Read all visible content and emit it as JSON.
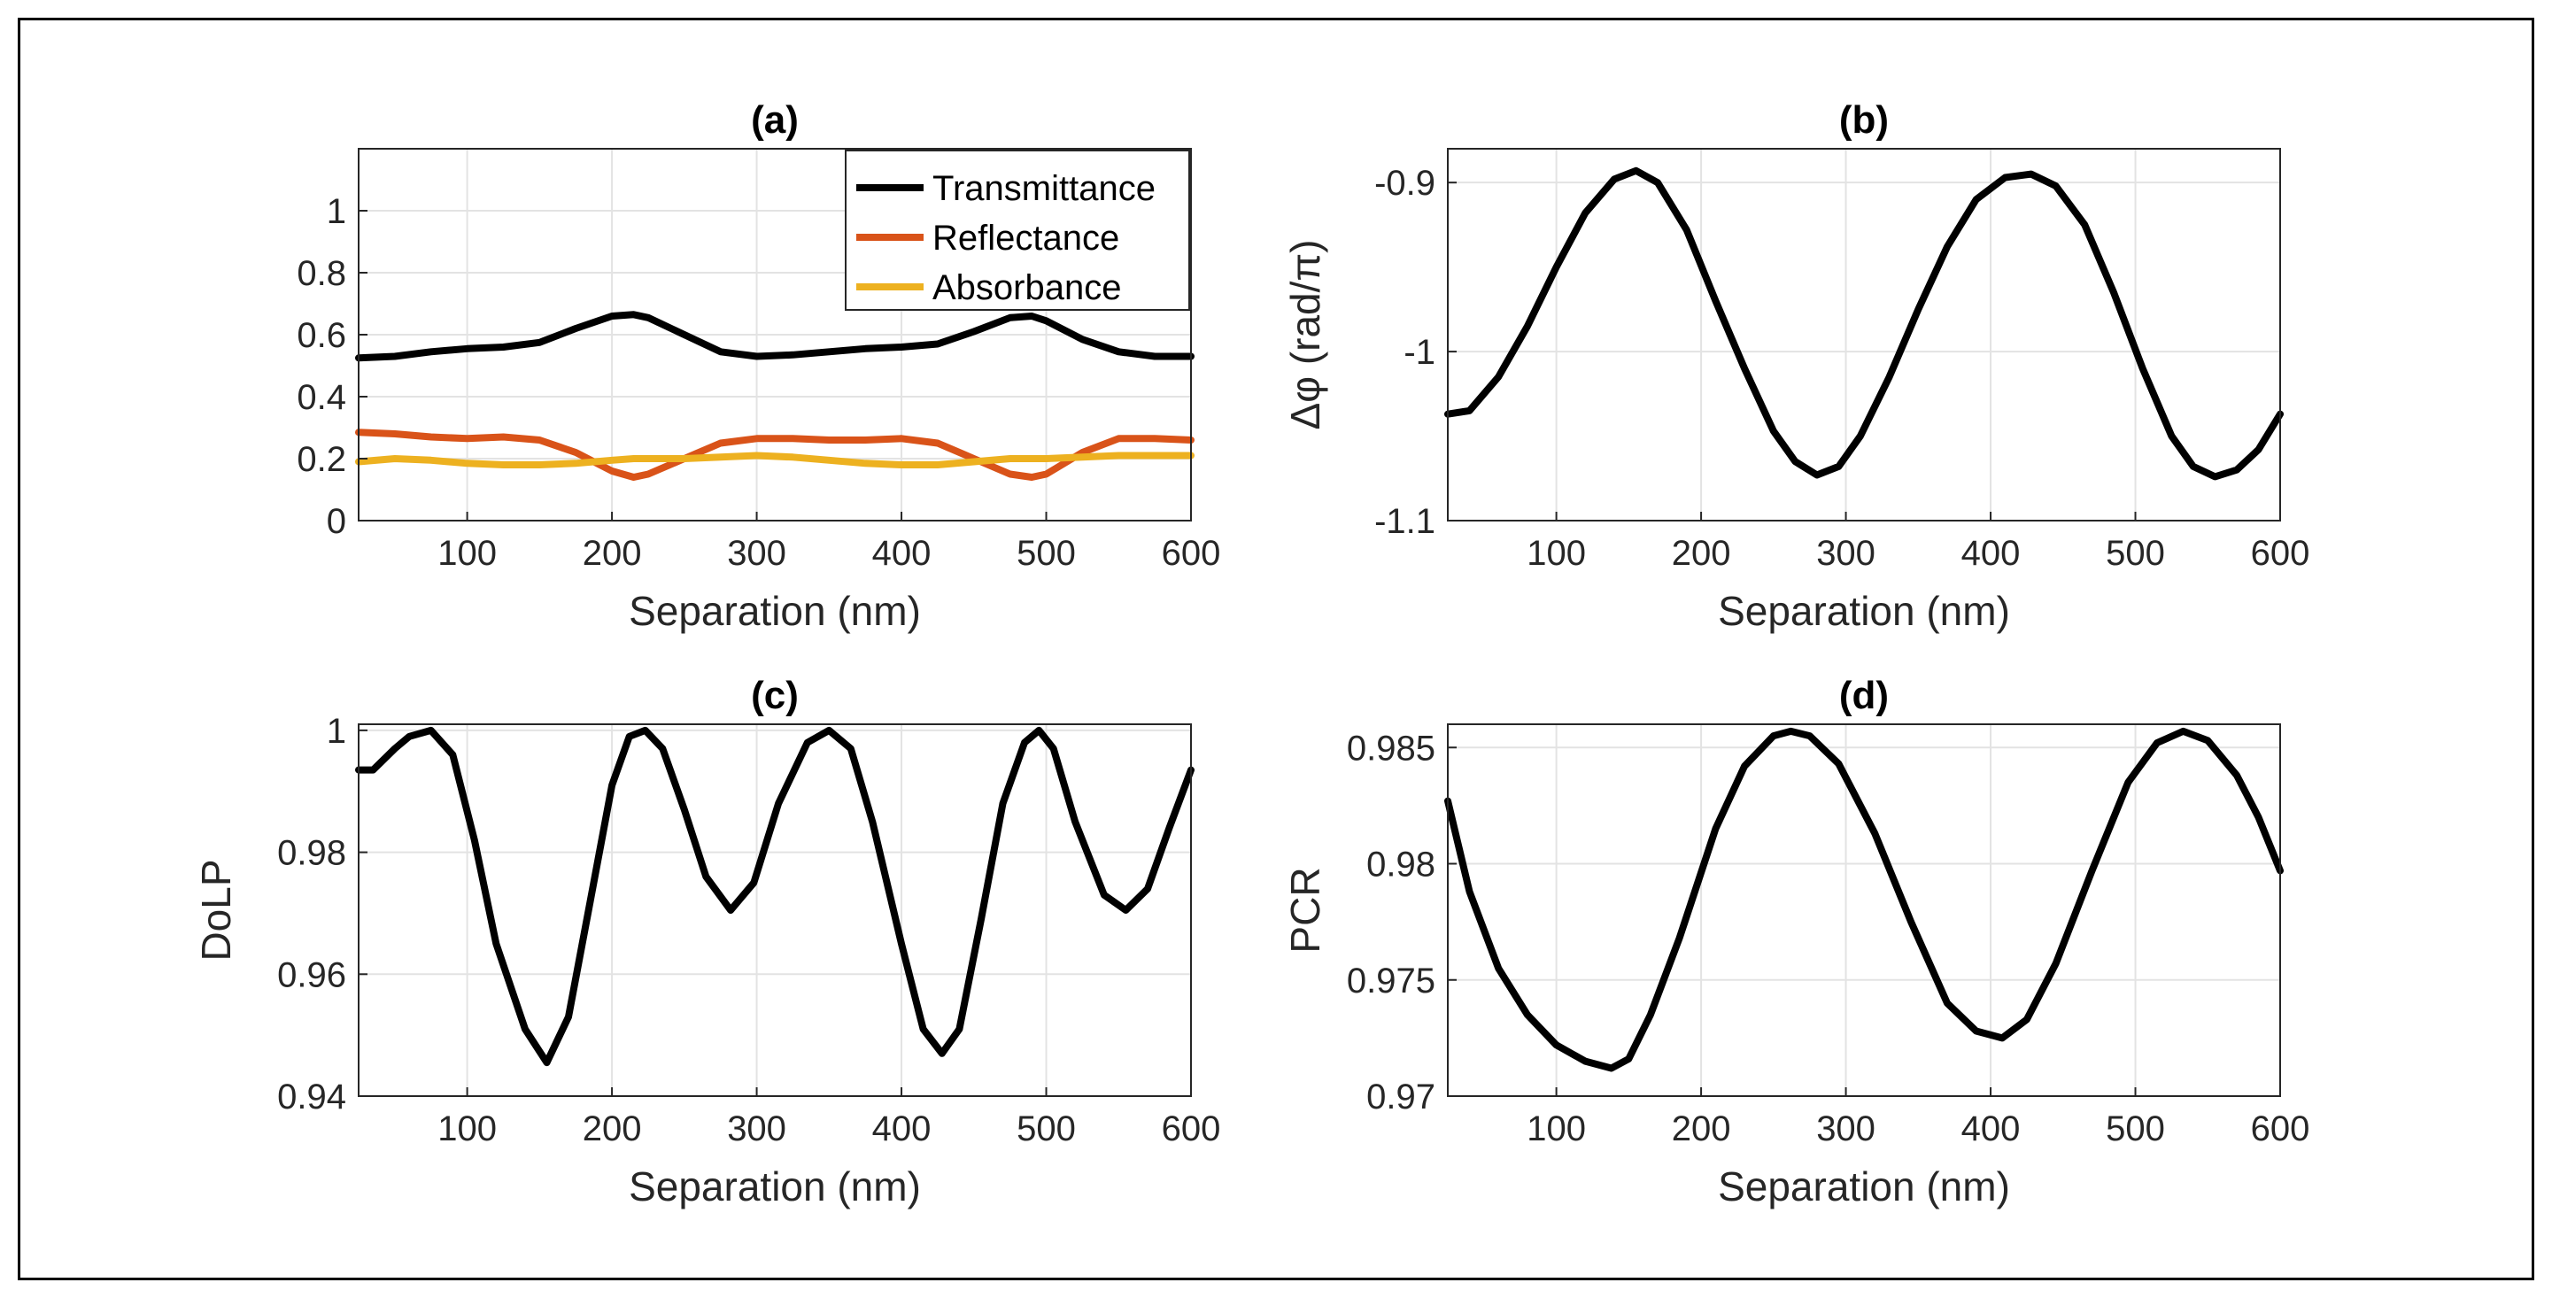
{
  "chart_data": [
    {
      "id": "a",
      "type": "line",
      "title": "(a)",
      "xlabel": "Separation (nm)",
      "ylabel": "",
      "xlim": [
        25,
        600
      ],
      "ylim": [
        0,
        1.2
      ],
      "xticks": [
        100,
        200,
        300,
        400,
        500,
        600
      ],
      "xtick_labels": [
        "100",
        "200",
        "300",
        "400",
        "500",
        "600"
      ],
      "yticks": [
        0,
        0.2,
        0.4,
        0.6,
        0.8,
        1
      ],
      "ytick_labels": [
        "0",
        "0.2",
        "0.4",
        "0.6",
        "0.8",
        "1"
      ],
      "grid": true,
      "legend": "top-right",
      "x": [
        25,
        50,
        75,
        100,
        125,
        150,
        175,
        200,
        215,
        225,
        250,
        275,
        300,
        325,
        350,
        375,
        400,
        425,
        450,
        475,
        490,
        500,
        525,
        550,
        575,
        600
      ],
      "series": [
        {
          "name": "Transmittance",
          "color": "#000000",
          "values": [
            0.525,
            0.53,
            0.545,
            0.555,
            0.56,
            0.575,
            0.62,
            0.66,
            0.665,
            0.655,
            0.6,
            0.545,
            0.53,
            0.535,
            0.545,
            0.555,
            0.56,
            0.57,
            0.61,
            0.655,
            0.66,
            0.645,
            0.585,
            0.545,
            0.53,
            0.53
          ]
        },
        {
          "name": "Reflectance",
          "color": "#D95319",
          "values": [
            0.285,
            0.28,
            0.27,
            0.265,
            0.27,
            0.26,
            0.22,
            0.16,
            0.14,
            0.15,
            0.2,
            0.25,
            0.265,
            0.265,
            0.26,
            0.26,
            0.265,
            0.25,
            0.2,
            0.15,
            0.14,
            0.15,
            0.22,
            0.265,
            0.265,
            0.26
          ]
        },
        {
          "name": "Absorbance",
          "color": "#EDB120",
          "values": [
            0.19,
            0.2,
            0.195,
            0.185,
            0.18,
            0.18,
            0.185,
            0.195,
            0.2,
            0.2,
            0.2,
            0.205,
            0.21,
            0.205,
            0.195,
            0.185,
            0.18,
            0.18,
            0.19,
            0.2,
            0.2,
            0.2,
            0.205,
            0.21,
            0.21,
            0.21
          ]
        }
      ]
    },
    {
      "id": "b",
      "type": "line",
      "title": "(b)",
      "xlabel": "Separation (nm)",
      "ylabel": "Δφ (rad/π)",
      "xlim": [
        25,
        600
      ],
      "ylim": [
        -1.1,
        -0.88
      ],
      "xticks": [
        100,
        200,
        300,
        400,
        500,
        600
      ],
      "xtick_labels": [
        "100",
        "200",
        "300",
        "400",
        "500",
        "600"
      ],
      "yticks": [
        -1.1,
        -1,
        -0.9
      ],
      "ytick_labels": [
        "-1.1",
        "-1",
        "-0.9"
      ],
      "grid": true,
      "x": [
        25,
        40,
        60,
        80,
        100,
        120,
        140,
        155,
        170,
        190,
        210,
        230,
        250,
        265,
        280,
        295,
        310,
        330,
        350,
        370,
        390,
        410,
        428,
        445,
        465,
        485,
        505,
        525,
        540,
        555,
        570,
        585,
        600
      ],
      "series": [
        {
          "name": "Δφ",
          "color": "#000000",
          "values": [
            -1.037,
            -1.035,
            -1.015,
            -0.985,
            -0.95,
            -0.918,
            -0.898,
            -0.893,
            -0.9,
            -0.928,
            -0.97,
            -1.01,
            -1.047,
            -1.065,
            -1.073,
            -1.068,
            -1.05,
            -1.015,
            -0.975,
            -0.938,
            -0.91,
            -0.897,
            -0.895,
            -0.902,
            -0.925,
            -0.965,
            -1.01,
            -1.05,
            -1.068,
            -1.074,
            -1.07,
            -1.058,
            -1.037
          ]
        }
      ]
    },
    {
      "id": "c",
      "type": "line",
      "title": "(c)",
      "xlabel": "Separation (nm)",
      "ylabel": "DoLP",
      "xlim": [
        25,
        600
      ],
      "ylim": [
        0.94,
        1.001
      ],
      "xticks": [
        100,
        200,
        300,
        400,
        500,
        600
      ],
      "xtick_labels": [
        "100",
        "200",
        "300",
        "400",
        "500",
        "600"
      ],
      "yticks": [
        0.94,
        0.96,
        0.98,
        1
      ],
      "ytick_labels": [
        "0.94",
        "0.96",
        "0.98",
        "1"
      ],
      "grid": true,
      "x": [
        25,
        35,
        50,
        60,
        75,
        90,
        105,
        120,
        140,
        155,
        170,
        185,
        200,
        212,
        223,
        235,
        250,
        265,
        282,
        298,
        315,
        335,
        350,
        365,
        380,
        400,
        415,
        428,
        440,
        455,
        470,
        485,
        495,
        505,
        520,
        540,
        555,
        570,
        585,
        600
      ],
      "series": [
        {
          "name": "DoLP",
          "color": "#000000",
          "values": [
            0.9935,
            0.9935,
            0.997,
            0.999,
            1.0,
            0.996,
            0.982,
            0.965,
            0.951,
            0.9455,
            0.953,
            0.972,
            0.991,
            0.999,
            1.0,
            0.997,
            0.987,
            0.976,
            0.9705,
            0.975,
            0.988,
            0.998,
            1.0,
            0.997,
            0.985,
            0.965,
            0.951,
            0.947,
            0.951,
            0.969,
            0.988,
            0.998,
            1.0,
            0.997,
            0.985,
            0.973,
            0.9705,
            0.974,
            0.984,
            0.9935
          ]
        }
      ]
    },
    {
      "id": "d",
      "type": "line",
      "title": "(d)",
      "xlabel": "Separation (nm)",
      "ylabel": "PCR",
      "xlim": [
        25,
        600
      ],
      "ylim": [
        0.97,
        0.986
      ],
      "xticks": [
        100,
        200,
        300,
        400,
        500,
        600
      ],
      "xtick_labels": [
        "100",
        "200",
        "300",
        "400",
        "500",
        "600"
      ],
      "yticks": [
        0.97,
        0.975,
        0.98,
        0.985
      ],
      "ytick_labels": [
        "0.97",
        "0.975",
        "0.98",
        "0.985"
      ],
      "grid": true,
      "x": [
        25,
        40,
        60,
        80,
        100,
        120,
        138,
        150,
        165,
        185,
        210,
        230,
        250,
        262,
        275,
        295,
        320,
        345,
        370,
        390,
        408,
        425,
        445,
        470,
        495,
        515,
        533,
        550,
        570,
        585,
        600
      ],
      "series": [
        {
          "name": "PCR",
          "color": "#000000",
          "values": [
            0.9827,
            0.9788,
            0.9755,
            0.9735,
            0.9722,
            0.9715,
            0.9712,
            0.9716,
            0.9735,
            0.9768,
            0.9815,
            0.9842,
            0.9855,
            0.9857,
            0.9855,
            0.9843,
            0.9813,
            0.9775,
            0.974,
            0.9728,
            0.9725,
            0.9733,
            0.9757,
            0.9797,
            0.9835,
            0.9852,
            0.9857,
            0.9853,
            0.9838,
            0.982,
            0.9797
          ]
        }
      ]
    }
  ]
}
